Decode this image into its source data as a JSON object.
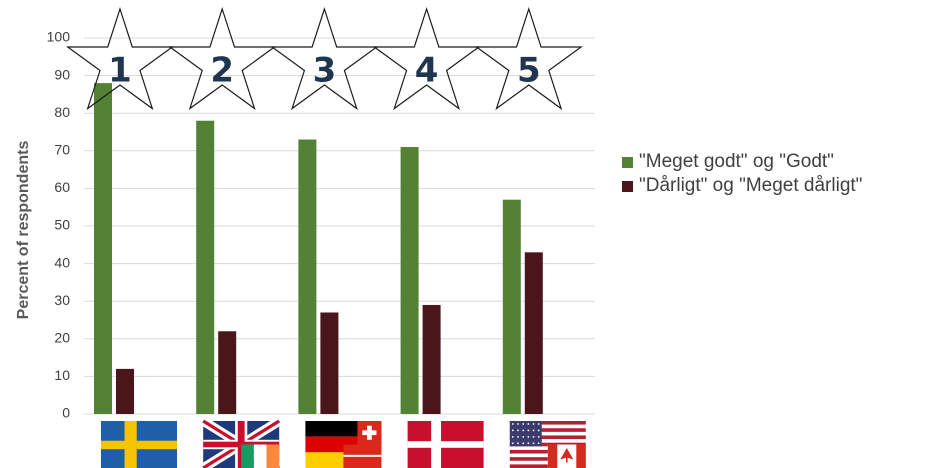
{
  "chart_data": {
    "type": "bar",
    "categories": [
      "1",
      "2",
      "3",
      "4",
      "5"
    ],
    "category_flags": [
      [
        "Sweden"
      ],
      [
        "United Kingdom",
        "Ireland"
      ],
      [
        "Germany",
        "Switzerland"
      ],
      [
        "Denmark"
      ],
      [
        "United States",
        "Canada"
      ]
    ],
    "series": [
      {
        "name": "\"Meget godt\" og \"Godt\"",
        "values": [
          88,
          78,
          73,
          71,
          57
        ],
        "color": "#548235"
      },
      {
        "name": "\"Dårligt\" og \"Meget dårligt\"",
        "values": [
          12,
          22,
          27,
          29,
          43
        ],
        "color": "#4a161a"
      }
    ],
    "ylabel": "Percent of respondents",
    "ylim": [
      0,
      100
    ],
    "yticks": [
      0,
      10,
      20,
      30,
      40,
      50,
      60,
      70,
      80,
      90,
      100
    ],
    "grid": true,
    "legend_position": "right"
  }
}
